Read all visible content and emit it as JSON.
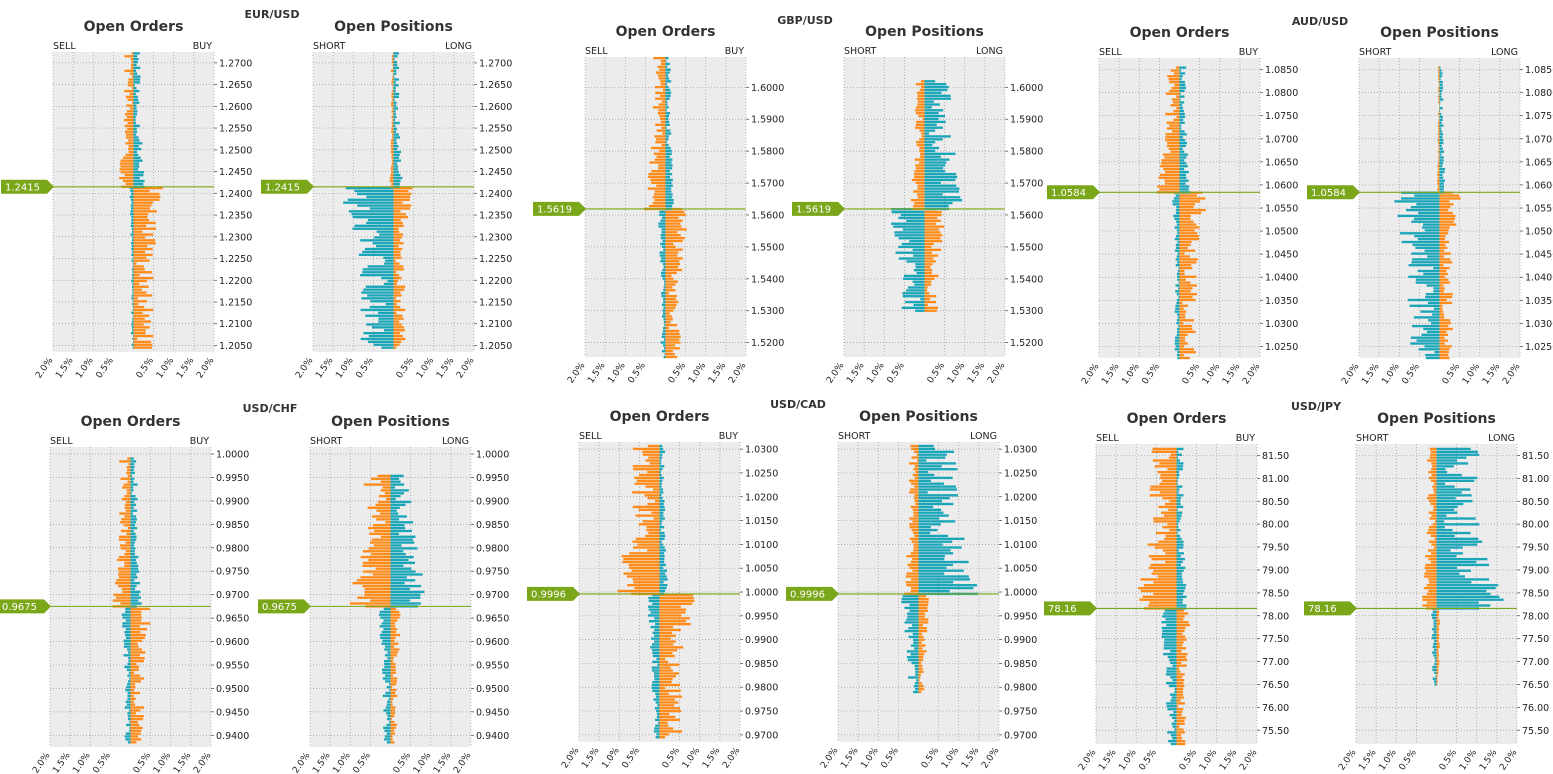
{
  "colors": {
    "sell": "#ff8c1a",
    "buy": "#1aa5b8",
    "price": "#7aa61a",
    "panel": "#ececec",
    "grid": "#9a9a9a"
  },
  "chart_data": {
    "type": "bar",
    "x_tick_labels": [
      "2.0%",
      "1.5%",
      "1.0%",
      "0.5%",
      "0.5%",
      "1.0%",
      "1.5%",
      "2.0%"
    ],
    "xlim": [
      -2.0,
      2.0
    ],
    "pairs": [
      {
        "pair": "EUR/USD",
        "current_price": 1.2415,
        "price_label": "1.2415",
        "ylim": [
          1.2035,
          1.2725
        ],
        "yticks": [
          1.27,
          1.265,
          1.26,
          1.255,
          1.25,
          1.245,
          1.24,
          1.235,
          1.23,
          1.225,
          1.22,
          1.215,
          1.21,
          1.205
        ],
        "ytick_labels": [
          "1.2700",
          "1.2650",
          "1.2600",
          "1.2550",
          "1.2500",
          "1.2450",
          "1.2400",
          "1.2350",
          "1.2300",
          "1.2250",
          "1.2200",
          "1.2150",
          "1.2100",
          "1.2050"
        ],
        "orders": {
          "title": "Open Orders",
          "left_label": "SELL",
          "right_label": "BUY",
          "levels": [
            {
              "range": [
                1.2045,
                1.2415
              ],
              "left": 0.08,
              "right": 0.62
            },
            {
              "range": [
                1.2415,
                1.2725
              ],
              "left": 0.3,
              "right": 0.22
            }
          ]
        },
        "positions": {
          "title": "Open Positions",
          "left_label": "SHORT",
          "right_label": "LONG",
          "levels": [
            {
              "range": [
                1.2045,
                1.2415
              ],
              "left": 1.05,
              "right": 0.38
            },
            {
              "range": [
                1.2415,
                1.2725
              ],
              "left": 0.08,
              "right": 0.18
            }
          ]
        }
      },
      {
        "pair": "GBP/USD",
        "current_price": 1.5619,
        "price_label": "1.5619",
        "ylim": [
          1.5155,
          1.6095
        ],
        "yticks": [
          1.6,
          1.59,
          1.58,
          1.57,
          1.56,
          1.55,
          1.54,
          1.53,
          1.52
        ],
        "ytick_labels": [
          "1.6000",
          "1.5900",
          "1.5800",
          "1.5700",
          "1.5600",
          "1.5500",
          "1.5400",
          "1.5300",
          "1.5200"
        ],
        "orders": {
          "title": "Open Orders",
          "left_label": "SELL",
          "right_label": "BUY",
          "levels": [
            {
              "range": [
                1.5155,
                1.5619
              ],
              "left": 0.15,
              "right": 0.48
            },
            {
              "range": [
                1.5619,
                1.6095
              ],
              "left": 0.42,
              "right": 0.18
            }
          ]
        },
        "positions": {
          "title": "Open Positions",
          "left_label": "SHORT",
          "right_label": "LONG",
          "levels": [
            {
              "range": [
                1.53,
                1.5619
              ],
              "left": 0.75,
              "right": 0.42
            },
            {
              "range": [
                1.5619,
                1.6025
              ],
              "left": 0.3,
              "right": 0.85
            }
          ]
        }
      },
      {
        "pair": "AUD/USD",
        "current_price": 1.0584,
        "price_label": "1.0584",
        "ylim": [
          1.0225,
          1.0875
        ],
        "yticks": [
          1.085,
          1.08,
          1.075,
          1.07,
          1.065,
          1.06,
          1.055,
          1.05,
          1.045,
          1.04,
          1.035,
          1.03,
          1.025
        ],
        "ytick_labels": [
          "1.0850",
          "1.0800",
          "1.0750",
          "1.0700",
          "1.0650",
          "1.0600",
          "1.0550",
          "1.0500",
          "1.0450",
          "1.0400",
          "1.0350",
          "1.0300",
          "1.0250"
        ],
        "orders": {
          "title": "Open Orders",
          "left_label": "SELL",
          "right_label": "BUY",
          "levels": [
            {
              "range": [
                1.0225,
                1.0584
              ],
              "left": 0.15,
              "right": 0.55
            },
            {
              "range": [
                1.0584,
                1.086
              ],
              "left": 0.45,
              "right": 0.22
            }
          ]
        },
        "positions": {
          "title": "Open Positions",
          "left_label": "SHORT",
          "right_label": "LONG",
          "levels": [
            {
              "range": [
                1.0225,
                1.0584
              ],
              "left": 1.0,
              "right": 0.42
            },
            {
              "range": [
                1.0584,
                1.0855
              ],
              "left": 0.05,
              "right": 0.12
            }
          ]
        }
      },
      {
        "pair": "USD/CHF",
        "current_price": 0.9675,
        "price_label": "0.9675",
        "ylim": [
          0.9375,
          1.0015
        ],
        "yticks": [
          1.0,
          0.995,
          0.99,
          0.985,
          0.98,
          0.975,
          0.97,
          0.965,
          0.96,
          0.955,
          0.95,
          0.945,
          0.94
        ],
        "ytick_labels": [
          "1.0000",
          "0.9950",
          "0.9900",
          "0.9850",
          "0.9800",
          "0.9750",
          "0.9700",
          "0.9650",
          "0.9600",
          "0.9550",
          "0.9500",
          "0.9450",
          "0.9400"
        ],
        "orders": {
          "title": "Open Orders",
          "left_label": "SELL",
          "right_label": "BUY",
          "levels": [
            {
              "range": [
                0.9385,
                0.9675
              ],
              "left": 0.18,
              "right": 0.45
            },
            {
              "range": [
                0.9675,
                0.9995
              ],
              "left": 0.35,
              "right": 0.22
            }
          ]
        },
        "positions": {
          "title": "Open Positions",
          "left_label": "SHORT",
          "right_label": "LONG",
          "levels": [
            {
              "range": [
                0.9385,
                0.9675
              ],
              "left": 0.25,
              "right": 0.22
            },
            {
              "range": [
                0.9675,
                0.9955
              ],
              "left": 0.85,
              "right": 0.75
            }
          ]
        }
      },
      {
        "pair": "USD/CAD",
        "current_price": 0.9996,
        "price_label": "0.9996",
        "ylim": [
          0.9685,
          1.0315
        ],
        "yticks": [
          1.03,
          1.025,
          1.02,
          1.015,
          1.01,
          1.005,
          1.0,
          0.995,
          0.99,
          0.985,
          0.98,
          0.975,
          0.97
        ],
        "ytick_labels": [
          "1.0300",
          "1.0250",
          "1.0200",
          "1.0150",
          "1.0100",
          "1.0050",
          "1.0000",
          "0.9950",
          "0.9900",
          "0.9850",
          "0.9800",
          "0.9750",
          "0.9700"
        ],
        "orders": {
          "title": "Open Orders",
          "left_label": "SELL",
          "right_label": "BUY",
          "levels": [
            {
              "range": [
                0.9695,
                0.9996
              ],
              "left": 0.25,
              "right": 0.72
            },
            {
              "range": [
                0.9996,
                1.031
              ],
              "left": 0.9,
              "right": 0.18
            }
          ]
        },
        "positions": {
          "title": "Open Positions",
          "left_label": "SHORT",
          "right_label": "LONG",
          "levels": [
            {
              "range": [
                0.979,
                0.9996
              ],
              "left": 0.35,
              "right": 0.22
            },
            {
              "range": [
                0.9996,
                1.031
              ],
              "left": 0.3,
              "right": 1.25
            }
          ]
        }
      },
      {
        "pair": "USD/JPY",
        "current_price": 78.16,
        "price_label": "78.16",
        "ylim": [
          75.2,
          81.75
        ],
        "yticks": [
          81.5,
          81.0,
          80.5,
          80.0,
          79.5,
          79.0,
          78.5,
          78.0,
          77.5,
          77.0,
          76.5,
          76.0,
          75.5
        ],
        "ytick_labels": [
          "81.50",
          "81.00",
          "80.50",
          "80.00",
          "79.50",
          "79.00",
          "78.50",
          "78.00",
          "77.50",
          "77.00",
          "76.50",
          "76.00",
          "75.50"
        ],
        "orders": {
          "title": "Open Orders",
          "left_label": "SELL",
          "right_label": "BUY",
          "levels": [
            {
              "range": [
                75.2,
                78.16
              ],
              "left": 0.35,
              "right": 0.3
            },
            {
              "range": [
                78.16,
                81.7
              ],
              "left": 0.85,
              "right": 0.22
            }
          ]
        },
        "positions": {
          "title": "Open Positions",
          "left_label": "SHORT",
          "right_label": "LONG",
          "levels": [
            {
              "range": [
                76.5,
                78.16
              ],
              "left": 0.12,
              "right": 0.08
            },
            {
              "range": [
                78.16,
                81.7
              ],
              "left": 0.3,
              "right": 1.35
            }
          ]
        }
      }
    ]
  }
}
